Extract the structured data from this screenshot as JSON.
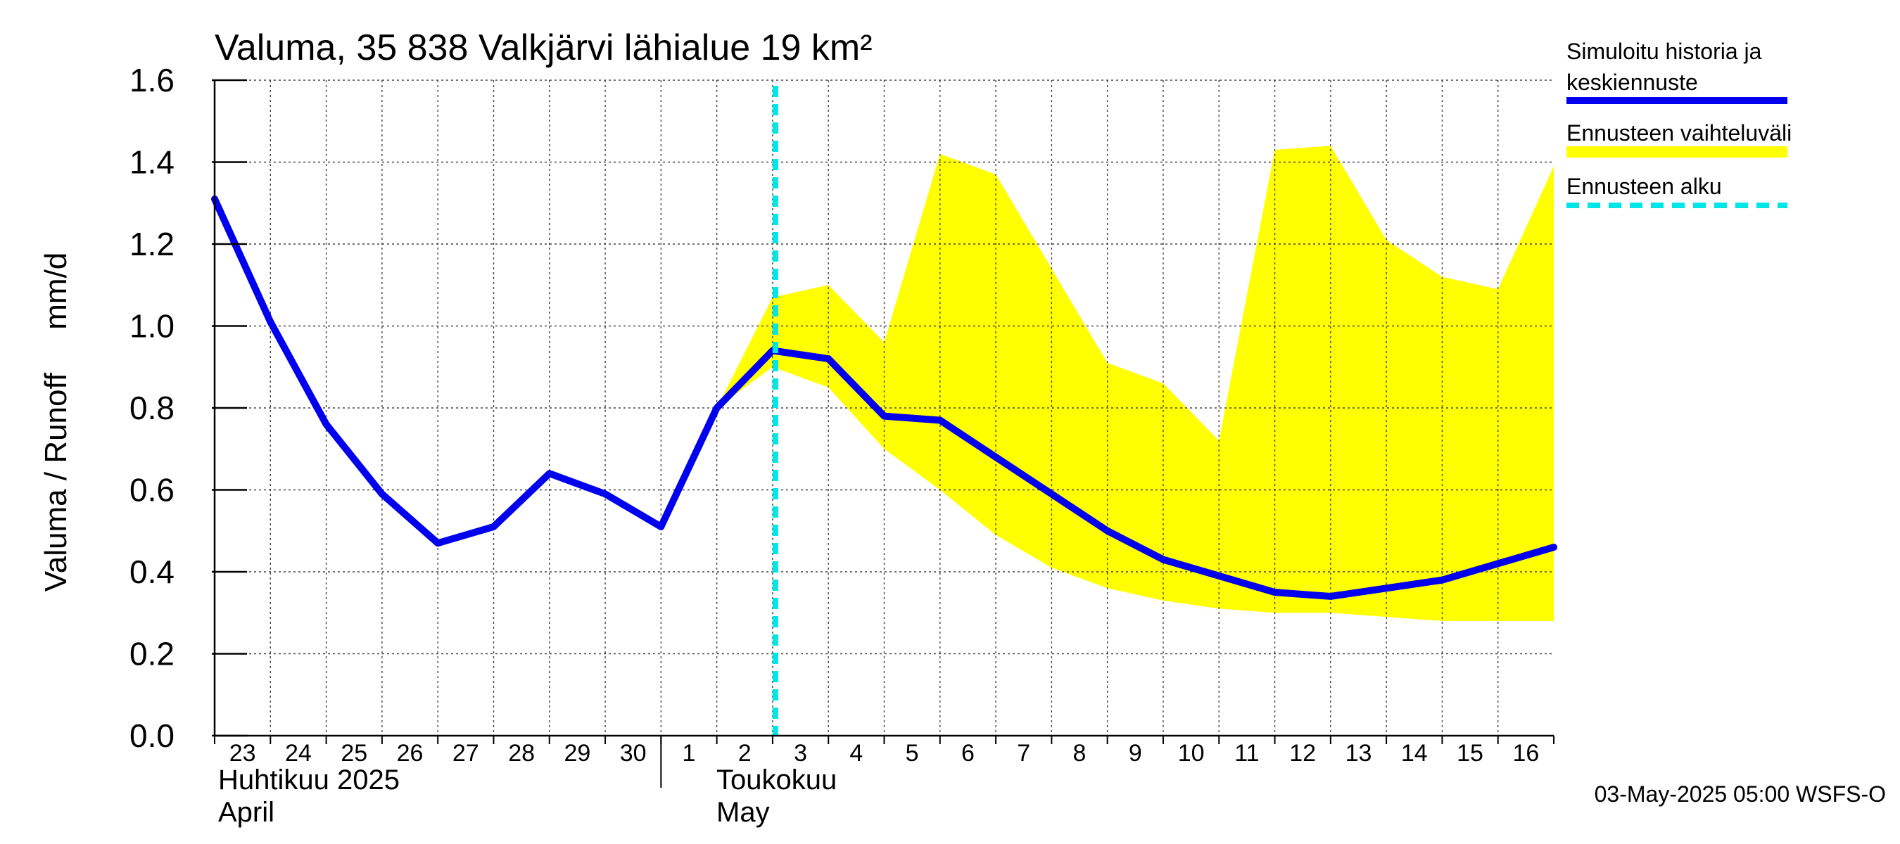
{
  "chart_data": {
    "type": "line",
    "title": "Valuma, 35 838 Valkjärvi lähialue 19 km²",
    "ylabel": "Valuma / Runoff     mm/d",
    "ylim": [
      0,
      1.6
    ],
    "yticks": [
      "0.0",
      "0.2",
      "0.4",
      "0.6",
      "0.8",
      "1.0",
      "1.2",
      "1.4",
      "1.6"
    ],
    "x_tick_labels": [
      "23",
      "24",
      "25",
      "26",
      "27",
      "28",
      "29",
      "30",
      "1",
      "2",
      "3",
      "4",
      "5",
      "6",
      "7",
      "8",
      "9",
      "10",
      "11",
      "12",
      "13",
      "14",
      "15",
      "16"
    ],
    "month_labels": [
      {
        "line1": "Huhtikuu  2025",
        "line2": "April"
      },
      {
        "line1": "Toukokuu",
        "line2": "May"
      }
    ],
    "grid": true,
    "forecast_start_day_index": 10,
    "series": [
      {
        "name": "Simuloitu historia ja keskiennuste",
        "color": "#0000ee",
        "values": [
          1.31,
          1.01,
          0.76,
          0.59,
          0.47,
          0.51,
          0.64,
          0.59,
          0.51,
          0.8,
          0.94,
          0.92,
          0.78,
          0.77,
          0.68,
          0.59,
          0.5,
          0.43,
          0.39,
          0.35,
          0.34,
          0.36,
          0.38,
          0.42,
          0.46
        ]
      }
    ],
    "range": {
      "name": "Ennusteen vaihteluväli",
      "color": "#ffff00",
      "start_index": 9,
      "upper": [
        0.8,
        1.07,
        1.1,
        0.96,
        1.42,
        1.37,
        1.14,
        0.91,
        0.86,
        0.72,
        1.43,
        1.44,
        1.21,
        1.12,
        1.09,
        1.39
      ],
      "lower": [
        0.8,
        0.9,
        0.85,
        0.7,
        0.6,
        0.49,
        0.41,
        0.36,
        0.33,
        0.31,
        0.3,
        0.3,
        0.29,
        0.28,
        0.28,
        0.28
      ]
    },
    "legend": {
      "placement": "right",
      "entries": [
        {
          "label_line1": "Simuloitu historia ja",
          "label_line2": "keskiennuste",
          "color": "#0000ee",
          "style": "solid"
        },
        {
          "label_line1": "Ennusteen vaihteluväli",
          "label_line2": "",
          "color": "#ffff00",
          "style": "solid"
        },
        {
          "label_line1": "Ennusteen alku",
          "label_line2": "",
          "color": "#00e5e5",
          "style": "dashed"
        }
      ]
    },
    "footer": "03-May-2025 05:00 WSFS-O"
  }
}
